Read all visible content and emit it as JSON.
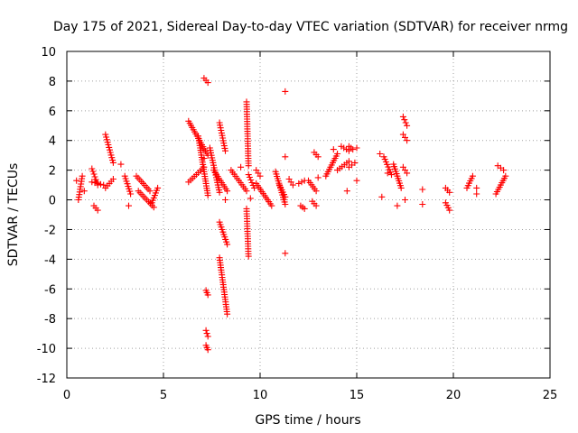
{
  "chart_data": {
    "type": "scatter",
    "title": "Day 175 of 2021, Sidereal Day-to-day VTEC variation (SDTVAR) for receiver nrmg",
    "xlabel": "GPS time / hours",
    "ylabel": "SDTVAR / TECUs",
    "xlim": [
      0,
      25
    ],
    "ylim": [
      -12,
      10
    ],
    "xticks": [
      "0",
      "5",
      "10",
      "15",
      "20",
      "25"
    ],
    "yticks": [
      "-12",
      "-10",
      "-8",
      "-6",
      "-4",
      "-2",
      "0",
      "2",
      "4",
      "6",
      "8",
      "10"
    ],
    "xtick_values": [
      0,
      5,
      10,
      15,
      20,
      25
    ],
    "ytick_values": [
      -12,
      -10,
      -8,
      -6,
      -4,
      -2,
      0,
      2,
      4,
      6,
      8,
      10
    ],
    "grid": true,
    "marker": "+",
    "color": "#ff0000",
    "segments": [
      {
        "x0": 0.6,
        "x1": 0.8,
        "y0": 0.0,
        "y1": 1.6
      },
      {
        "x0": 1.3,
        "x1": 1.6,
        "y0": 2.1,
        "y1": 1.0
      },
      {
        "x0": 1.4,
        "x1": 1.6,
        "y0": -0.4,
        "y1": -0.7
      },
      {
        "x0": 1.3,
        "x1": 1.9,
        "y0": 1.2,
        "y1": 1.0
      },
      {
        "x0": 2.0,
        "x1": 2.4,
        "y0": 4.4,
        "y1": 2.5
      },
      {
        "x0": 2.0,
        "x1": 2.4,
        "y0": 0.8,
        "y1": 1.4
      },
      {
        "x0": 3.0,
        "x1": 3.3,
        "y0": 1.6,
        "y1": 0.4
      },
      {
        "x0": 3.6,
        "x1": 4.3,
        "y0": 1.6,
        "y1": 0.6
      },
      {
        "x0": 3.7,
        "x1": 4.5,
        "y0": 0.6,
        "y1": -0.5
      },
      {
        "x0": 4.4,
        "x1": 4.7,
        "y0": -0.2,
        "y1": 0.8
      },
      {
        "x0": 6.3,
        "x1": 7.3,
        "y0": 5.3,
        "y1": 3.0
      },
      {
        "x0": 6.3,
        "x1": 7.1,
        "y0": 1.2,
        "y1": 2.2
      },
      {
        "x0": 6.8,
        "x1": 7.3,
        "y0": 4.3,
        "y1": 0.3
      },
      {
        "x0": 7.1,
        "x1": 7.3,
        "y0": 8.2,
        "y1": 7.9
      },
      {
        "x0": 7.2,
        "x1": 7.3,
        "y0": -6.1,
        "y1": -6.4
      },
      {
        "x0": 7.2,
        "x1": 7.3,
        "y0": -8.8,
        "y1": -9.2
      },
      {
        "x0": 7.2,
        "x1": 7.3,
        "y0": -9.8,
        "y1": -10.1
      },
      {
        "x0": 7.4,
        "x1": 7.9,
        "y0": 3.5,
        "y1": 0.5
      },
      {
        "x0": 7.6,
        "x1": 8.3,
        "y0": 2.0,
        "y1": 0.6
      },
      {
        "x0": 7.9,
        "x1": 8.2,
        "y0": 5.2,
        "y1": 3.3
      },
      {
        "x0": 7.9,
        "x1": 8.3,
        "y0": -1.5,
        "y1": -3.0
      },
      {
        "x0": 7.9,
        "x1": 8.3,
        "y0": -3.9,
        "y1": -7.7
      },
      {
        "x0": 8.5,
        "x1": 9.3,
        "y0": 2.0,
        "y1": 0.6
      },
      {
        "x0": 9.3,
        "x1": 9.4,
        "y0": 6.6,
        "y1": 2.3
      },
      {
        "x0": 9.3,
        "x1": 9.4,
        "y0": -0.6,
        "y1": -3.8
      },
      {
        "x0": 9.4,
        "x1": 9.7,
        "y0": 1.7,
        "y1": 0.8
      },
      {
        "x0": 9.8,
        "x1": 10.6,
        "y0": 1.1,
        "y1": -0.4
      },
      {
        "x0": 9.8,
        "x1": 10.0,
        "y0": 2.0,
        "y1": 1.6
      },
      {
        "x0": 10.8,
        "x1": 11.3,
        "y0": 1.9,
        "y1": -0.3
      },
      {
        "x0": 11.0,
        "x1": 11.3,
        "y0": 1.0,
        "y1": 0.2
      },
      {
        "x0": 11.5,
        "x1": 11.7,
        "y0": 1.4,
        "y1": 1.0
      },
      {
        "x0": 12.0,
        "x1": 12.3,
        "y0": 1.1,
        "y1": 1.3
      },
      {
        "x0": 12.1,
        "x1": 12.3,
        "y0": -0.4,
        "y1": -0.6
      },
      {
        "x0": 12.5,
        "x1": 12.9,
        "y0": 1.3,
        "y1": 0.6
      },
      {
        "x0": 12.7,
        "x1": 12.9,
        "y0": -0.1,
        "y1": -0.4
      },
      {
        "x0": 12.8,
        "x1": 13.0,
        "y0": 3.2,
        "y1": 2.9
      },
      {
        "x0": 13.4,
        "x1": 14.0,
        "y0": 1.6,
        "y1": 3.1
      },
      {
        "x0": 14.0,
        "x1": 14.6,
        "y0": 2.0,
        "y1": 2.6
      },
      {
        "x0": 14.2,
        "x1": 14.6,
        "y0": 3.6,
        "y1": 3.3
      },
      {
        "x0": 14.6,
        "x1": 14.8,
        "y0": 3.6,
        "y1": 3.4
      },
      {
        "x0": 14.6,
        "x1": 14.9,
        "y0": 2.2,
        "y1": 2.5
      },
      {
        "x0": 16.4,
        "x1": 16.8,
        "y0": 2.9,
        "y1": 1.7
      },
      {
        "x0": 16.9,
        "x1": 17.3,
        "y0": 2.4,
        "y1": 0.8
      },
      {
        "x0": 17.4,
        "x1": 17.6,
        "y0": 5.6,
        "y1": 5.0
      },
      {
        "x0": 17.4,
        "x1": 17.6,
        "y0": 4.4,
        "y1": 4.0
      },
      {
        "x0": 17.4,
        "x1": 17.6,
        "y0": 2.2,
        "y1": 1.8
      },
      {
        "x0": 19.6,
        "x1": 19.8,
        "y0": 0.8,
        "y1": 0.5
      },
      {
        "x0": 19.6,
        "x1": 19.8,
        "y0": -0.2,
        "y1": -0.7
      },
      {
        "x0": 20.7,
        "x1": 21.0,
        "y0": 0.8,
        "y1": 1.6
      },
      {
        "x0": 22.3,
        "x1": 22.6,
        "y0": 2.3,
        "y1": 2.0
      },
      {
        "x0": 22.2,
        "x1": 22.7,
        "y0": 0.4,
        "y1": 1.6
      }
    ],
    "points": [
      [
        0.5,
        1.3
      ],
      [
        0.9,
        0.6
      ],
      [
        2.8,
        2.4
      ],
      [
        3.2,
        -0.4
      ],
      [
        7.1,
        2.8
      ],
      [
        8.2,
        0.0
      ],
      [
        9.0,
        2.2
      ],
      [
        9.5,
        0.1
      ],
      [
        11.3,
        7.3
      ],
      [
        11.3,
        2.9
      ],
      [
        11.3,
        -3.6
      ],
      [
        13.0,
        1.5
      ],
      [
        13.8,
        3.4
      ],
      [
        14.5,
        0.6
      ],
      [
        15.0,
        1.3
      ],
      [
        15.0,
        3.5
      ],
      [
        16.2,
        3.1
      ],
      [
        16.3,
        0.2
      ],
      [
        16.6,
        1.8
      ],
      [
        17.1,
        -0.4
      ],
      [
        17.5,
        0.0
      ],
      [
        18.4,
        0.7
      ],
      [
        18.4,
        -0.3
      ],
      [
        21.2,
        0.4
      ],
      [
        21.2,
        0.8
      ]
    ]
  }
}
